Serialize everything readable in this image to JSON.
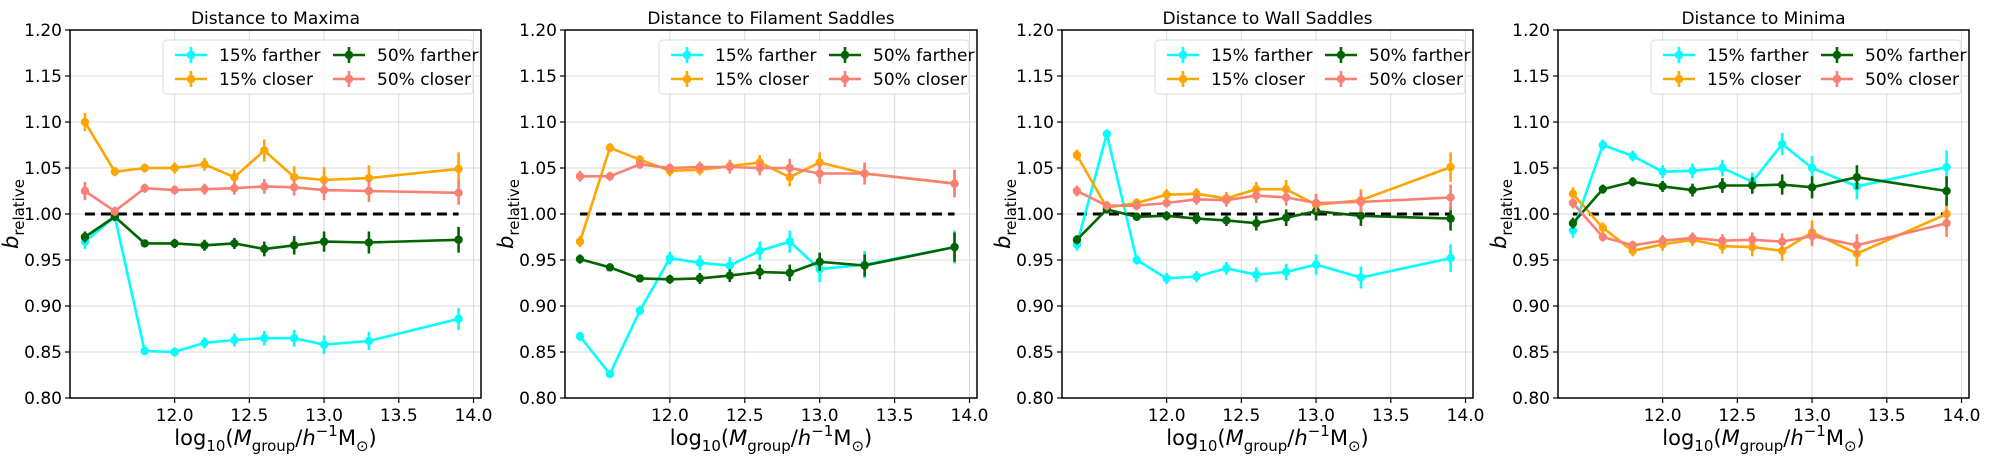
{
  "chart_data": [
    {
      "type": "line",
      "title": "Distance to Maxima",
      "xlabel_tex": {
        "base": "log",
        "sub": "10",
        "open": "(",
        "M": "M",
        "msub": "group",
        "slash": "/",
        "h": "h",
        "hsup": "−1",
        "Msun": "M",
        "sun": "⊙",
        "close": ")"
      },
      "ylabel": {
        "main": "b",
        "sub": "relative"
      },
      "xlim": [
        11.3,
        14.05
      ],
      "ylim": [
        0.8,
        1.2
      ],
      "xticks": [
        "12.0",
        "12.5",
        "13.0",
        "13.5",
        "14.0"
      ],
      "xtick_values": [
        12.0,
        12.5,
        13.0,
        13.5,
        14.0
      ],
      "yticks": [
        "0.80",
        "0.85",
        "0.90",
        "0.95",
        "1.00",
        "1.05",
        "1.10",
        "1.15",
        "1.20"
      ],
      "ytick_values": [
        0.8,
        0.85,
        0.9,
        0.95,
        1.0,
        1.05,
        1.1,
        1.15,
        1.2
      ],
      "reference_line": 1.0,
      "legend_position": "top-right",
      "x": [
        11.4,
        11.6,
        11.8,
        12.0,
        12.2,
        12.4,
        12.6,
        12.8,
        13.0,
        13.3,
        13.9
      ],
      "series": [
        {
          "name": "15% farther",
          "color": "#00ffff",
          "values": [
            0.97,
            0.997,
            0.851,
            0.85,
            0.86,
            0.863,
            0.865,
            0.865,
            0.858,
            0.862,
            0.886
          ],
          "errors": [
            0.008,
            0.005,
            0.004,
            0.005,
            0.006,
            0.007,
            0.008,
            0.009,
            0.01,
            0.01,
            0.012
          ]
        },
        {
          "name": "15% closer",
          "color": "#ffa500",
          "values": [
            1.1,
            1.046,
            1.05,
            1.05,
            1.054,
            1.04,
            1.069,
            1.04,
            1.037,
            1.039,
            1.049
          ],
          "errors": [
            0.01,
            0.005,
            0.005,
            0.006,
            0.007,
            0.008,
            0.012,
            0.012,
            0.014,
            0.014,
            0.018
          ]
        },
        {
          "name": "50% farther",
          "color": "#006400",
          "values": [
            0.975,
            0.997,
            0.968,
            0.968,
            0.966,
            0.968,
            0.962,
            0.966,
            0.97,
            0.969,
            0.972
          ],
          "errors": [
            0.006,
            0.004,
            0.004,
            0.005,
            0.006,
            0.006,
            0.008,
            0.01,
            0.011,
            0.012,
            0.014
          ]
        },
        {
          "name": "50% closer",
          "color": "#fa8072",
          "values": [
            1.025,
            1.003,
            1.028,
            1.026,
            1.027,
            1.028,
            1.03,
            1.029,
            1.026,
            1.025,
            1.023
          ],
          "errors": [
            0.01,
            0.005,
            0.005,
            0.005,
            0.006,
            0.007,
            0.008,
            0.009,
            0.011,
            0.012,
            0.013
          ]
        }
      ]
    },
    {
      "type": "line",
      "title": "Distance to Filament Saddles",
      "xlabel_tex": {
        "base": "log",
        "sub": "10",
        "open": "(",
        "M": "M",
        "msub": "group",
        "slash": "/",
        "h": "h",
        "hsup": "−1",
        "Msun": "M",
        "sun": "⊙",
        "close": ")"
      },
      "ylabel": {
        "main": "b",
        "sub": "relative"
      },
      "xlim": [
        11.3,
        14.05
      ],
      "ylim": [
        0.8,
        1.2
      ],
      "xticks": [
        "12.0",
        "12.5",
        "13.0",
        "13.5",
        "14.0"
      ],
      "xtick_values": [
        12.0,
        12.5,
        13.0,
        13.5,
        14.0
      ],
      "yticks": [
        "0.80",
        "0.85",
        "0.90",
        "0.95",
        "1.00",
        "1.05",
        "1.10",
        "1.15",
        "1.20"
      ],
      "ytick_values": [
        0.8,
        0.85,
        0.9,
        0.95,
        1.0,
        1.05,
        1.1,
        1.15,
        1.2
      ],
      "reference_line": 1.0,
      "legend_position": "top-right",
      "x": [
        11.4,
        11.6,
        11.8,
        12.0,
        12.2,
        12.4,
        12.6,
        12.8,
        13.0,
        13.3,
        13.9
      ],
      "series": [
        {
          "name": "15% farther",
          "color": "#00ffff",
          "values": [
            0.867,
            0.826,
            0.895,
            0.952,
            0.947,
            0.944,
            0.96,
            0.97,
            0.94,
            0.945,
            0.964
          ],
          "errors": [
            0.005,
            0.004,
            0.005,
            0.007,
            0.008,
            0.009,
            0.01,
            0.012,
            0.014,
            0.015,
            0.018
          ]
        },
        {
          "name": "15% closer",
          "color": "#ffa500",
          "values": [
            0.97,
            1.072,
            1.059,
            1.047,
            1.048,
            1.052,
            1.056,
            1.04,
            1.056,
            1.044,
            1.033
          ],
          "errors": [
            0.006,
            0.005,
            0.005,
            0.006,
            0.006,
            0.007,
            0.008,
            0.01,
            0.011,
            0.012,
            0.014
          ]
        },
        {
          "name": "50% farther",
          "color": "#006400",
          "values": [
            0.951,
            0.942,
            0.93,
            0.929,
            0.93,
            0.933,
            0.937,
            0.936,
            0.948,
            0.944,
            0.964
          ],
          "errors": [
            0.005,
            0.004,
            0.004,
            0.005,
            0.006,
            0.007,
            0.008,
            0.009,
            0.01,
            0.012,
            0.016
          ]
        },
        {
          "name": "50% closer",
          "color": "#fa8072",
          "values": [
            1.041,
            1.041,
            1.054,
            1.05,
            1.051,
            1.051,
            1.05,
            1.05,
            1.044,
            1.044,
            1.033
          ],
          "errors": [
            0.006,
            0.005,
            0.005,
            0.005,
            0.006,
            0.007,
            0.008,
            0.01,
            0.011,
            0.012,
            0.015
          ]
        }
      ]
    },
    {
      "type": "line",
      "title": "Distance to Wall Saddles",
      "xlabel_tex": {
        "base": "log",
        "sub": "10",
        "open": "(",
        "M": "M",
        "msub": "group",
        "slash": "/",
        "h": "h",
        "hsup": "−1",
        "Msun": "M",
        "sun": "⊙",
        "close": ")"
      },
      "ylabel": {
        "main": "b",
        "sub": "relative"
      },
      "xlim": [
        11.3,
        14.05
      ],
      "ylim": [
        0.8,
        1.2
      ],
      "xticks": [
        "12.0",
        "12.5",
        "13.0",
        "13.5",
        "14.0"
      ],
      "xtick_values": [
        12.0,
        12.5,
        13.0,
        13.5,
        14.0
      ],
      "yticks": [
        "0.80",
        "0.85",
        "0.90",
        "0.95",
        "1.00",
        "1.05",
        "1.10",
        "1.15",
        "1.20"
      ],
      "ytick_values": [
        0.8,
        0.85,
        0.9,
        0.95,
        1.0,
        1.05,
        1.1,
        1.15,
        1.2
      ],
      "reference_line": 1.0,
      "legend_position": "top-right",
      "x": [
        11.4,
        11.6,
        11.8,
        12.0,
        12.2,
        12.4,
        12.6,
        12.8,
        13.0,
        13.3,
        13.9
      ],
      "series": [
        {
          "name": "15% farther",
          "color": "#00ffff",
          "values": [
            0.967,
            1.087,
            0.95,
            0.93,
            0.932,
            0.941,
            0.934,
            0.937,
            0.945,
            0.931,
            0.952
          ],
          "errors": [
            0.007,
            0.005,
            0.005,
            0.006,
            0.006,
            0.007,
            0.008,
            0.009,
            0.011,
            0.012,
            0.015
          ]
        },
        {
          "name": "15% closer",
          "color": "#ffa500",
          "values": [
            1.064,
            1.007,
            1.012,
            1.021,
            1.022,
            1.017,
            1.027,
            1.027,
            1.01,
            1.015,
            1.051
          ],
          "errors": [
            0.006,
            0.005,
            0.005,
            0.006,
            0.006,
            0.007,
            0.008,
            0.01,
            0.011,
            0.012,
            0.016
          ]
        },
        {
          "name": "50% farther",
          "color": "#006400",
          "values": [
            0.972,
            1.005,
            0.997,
            0.998,
            0.995,
            0.993,
            0.99,
            0.996,
            1.003,
            0.998,
            0.995
          ],
          "errors": [
            0.005,
            0.004,
            0.004,
            0.005,
            0.006,
            0.006,
            0.008,
            0.009,
            0.01,
            0.011,
            0.013
          ]
        },
        {
          "name": "50% closer",
          "color": "#fa8072",
          "values": [
            1.025,
            1.009,
            1.009,
            1.012,
            1.016,
            1.015,
            1.02,
            1.018,
            1.012,
            1.013,
            1.018
          ],
          "errors": [
            0.006,
            0.005,
            0.005,
            0.005,
            0.006,
            0.007,
            0.008,
            0.009,
            0.01,
            0.011,
            0.014
          ]
        }
      ]
    },
    {
      "type": "line",
      "title": "Distance to Minima",
      "xlabel_tex": {
        "base": "log",
        "sub": "10",
        "open": "(",
        "M": "M",
        "msub": "group",
        "slash": "/",
        "h": "h",
        "hsup": "−1",
        "Msun": "M",
        "sun": "⊙",
        "close": ")"
      },
      "ylabel": {
        "main": "b",
        "sub": "relative"
      },
      "xlim": [
        11.3,
        14.05
      ],
      "ylim": [
        0.8,
        1.2
      ],
      "xticks": [
        "12.0",
        "12.5",
        "13.0",
        "13.5",
        "14.0"
      ],
      "xtick_values": [
        12.0,
        12.5,
        13.0,
        13.5,
        14.0
      ],
      "yticks": [
        "0.80",
        "0.85",
        "0.90",
        "0.95",
        "1.00",
        "1.05",
        "1.10",
        "1.15",
        "1.20"
      ],
      "ytick_values": [
        0.8,
        0.85,
        0.9,
        0.95,
        1.0,
        1.05,
        1.1,
        1.15,
        1.2
      ],
      "reference_line": 1.0,
      "legend_position": "top-right",
      "x": [
        11.4,
        11.6,
        11.8,
        12.0,
        12.2,
        12.4,
        12.6,
        12.8,
        13.0,
        13.3,
        13.9
      ],
      "series": [
        {
          "name": "15% farther",
          "color": "#00ffff",
          "values": [
            0.982,
            1.075,
            1.063,
            1.046,
            1.047,
            1.05,
            1.035,
            1.076,
            1.05,
            1.03,
            1.051
          ],
          "errors": [
            0.008,
            0.006,
            0.006,
            0.007,
            0.008,
            0.009,
            0.01,
            0.012,
            0.013,
            0.014,
            0.018
          ]
        },
        {
          "name": "15% closer",
          "color": "#ffa500",
          "values": [
            1.022,
            0.985,
            0.96,
            0.967,
            0.972,
            0.965,
            0.964,
            0.96,
            0.98,
            0.957,
            1.0
          ],
          "errors": [
            0.007,
            0.006,
            0.006,
            0.007,
            0.007,
            0.008,
            0.01,
            0.011,
            0.013,
            0.014,
            0.017
          ]
        },
        {
          "name": "50% farther",
          "color": "#006400",
          "values": [
            0.99,
            1.027,
            1.035,
            1.03,
            1.026,
            1.031,
            1.031,
            1.032,
            1.029,
            1.04,
            1.025
          ],
          "errors": [
            0.006,
            0.005,
            0.005,
            0.006,
            0.007,
            0.008,
            0.009,
            0.011,
            0.012,
            0.013,
            0.016
          ]
        },
        {
          "name": "50% closer",
          "color": "#fa8072",
          "values": [
            1.012,
            0.975,
            0.966,
            0.971,
            0.974,
            0.971,
            0.972,
            0.97,
            0.976,
            0.966,
            0.99
          ],
          "errors": [
            0.006,
            0.005,
            0.005,
            0.006,
            0.006,
            0.007,
            0.008,
            0.009,
            0.011,
            0.012,
            0.015
          ]
        }
      ]
    }
  ]
}
